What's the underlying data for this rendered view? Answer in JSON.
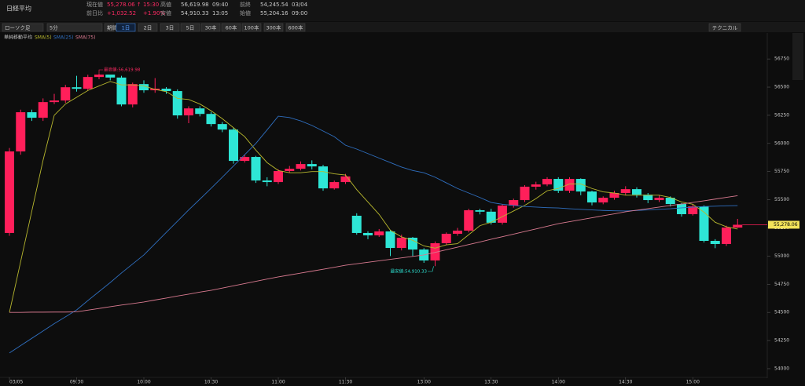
{
  "header": {
    "title": "日経平均",
    "items": [
      {
        "label": "現在値",
        "value": "55,278.06 ↑",
        "extra": "15:30"
      },
      {
        "label": "前日比",
        "value": "+1,032.52",
        "extra": "+1.90%"
      },
      {
        "label": "高値",
        "value": "56,619.98",
        "extra": "09:40"
      },
      {
        "label": "安値",
        "value": "54,910.33",
        "extra": "13:05"
      },
      {
        "label": "前終",
        "value": "54,245.54",
        "extra": "03/04"
      },
      {
        "label": "始値",
        "value": "55,204.16",
        "extra": "09:00"
      }
    ]
  },
  "toolbar": {
    "dropdowns": [
      "ローソク足",
      "5分",
      "期間指定"
    ],
    "buttons": [
      "1日",
      "2日",
      "3日",
      "5日",
      "30本",
      "60本",
      "100本",
      "300本",
      "600本"
    ],
    "right_button": "テクニカル"
  },
  "chart_data": {
    "type": "candlestick",
    "indicator_title": "単純移動平均",
    "up_color": "#ff1f5a",
    "down_color": "#2ee6d6",
    "categories": [
      "03/05",
      null,
      null,
      null,
      null,
      null,
      "09:30",
      null,
      null,
      null,
      null,
      null,
      "10:00",
      null,
      null,
      null,
      null,
      null,
      "10:30",
      null,
      null,
      null,
      null,
      null,
      "11:00",
      null,
      null,
      null,
      null,
      null,
      "11:30",
      null,
      null,
      null,
      null,
      null,
      null,
      "13:00",
      null,
      null,
      null,
      null,
      null,
      "13:30",
      null,
      null,
      null,
      null,
      null,
      "14:00",
      null,
      null,
      null,
      null,
      null,
      "14:30",
      null,
      null,
      null,
      null,
      null,
      "15:00",
      null,
      null,
      null,
      null
    ],
    "open": [
      55205,
      55929,
      56277,
      56228,
      56367,
      56381,
      56499,
      56485,
      56590,
      56611,
      56585,
      56346,
      56527,
      56472,
      56486,
      56465,
      56249,
      56311,
      56262,
      56172,
      56123,
      55845,
      55880,
      55671,
      55657,
      55755,
      55775,
      55817,
      55796,
      55601,
      55657,
      55358,
      55205,
      55184,
      55219,
      55072,
      55163,
      55058,
      54961,
      55114,
      55198,
      55226,
      55407,
      55394,
      55296,
      55448,
      55497,
      55616,
      55636,
      55685,
      55580,
      55685,
      55573,
      55476,
      55518,
      55560,
      55594,
      55545,
      55497,
      55518,
      55462,
      55372,
      55441,
      55135,
      55107,
      55253
    ],
    "high": [
      55960,
      56300,
      56300,
      56400,
      56440,
      56520,
      56600,
      56610,
      56619.98,
      56600,
      56600,
      56540,
      56560,
      56580,
      56500,
      56480,
      56330,
      56330,
      56280,
      56190,
      56140,
      55900,
      55890,
      55700,
      55770,
      55800,
      55840,
      55850,
      55810,
      55670,
      55730,
      55380,
      55220,
      55240,
      55230,
      55190,
      55170,
      55070,
      55130,
      55210,
      55250,
      55420,
      55420,
      55420,
      55460,
      55510,
      55630,
      55660,
      55700,
      55700,
      55700,
      55690,
      55580,
      55530,
      55580,
      55620,
      55610,
      55560,
      55540,
      55530,
      55470,
      55460,
      55450,
      55150,
      55270,
      55330
    ],
    "low": [
      55180,
      55900,
      56200,
      56200,
      56350,
      56360,
      56460,
      56470,
      56570,
      56560,
      56330,
      56320,
      56450,
      56450,
      56440,
      56220,
      56180,
      56240,
      56150,
      56100,
      55820,
      55830,
      55650,
      55620,
      55640,
      55740,
      55760,
      55770,
      55580,
      55590,
      55640,
      55190,
      55150,
      55170,
      55000,
      55050,
      55000,
      54940,
      54910.33,
      55100,
      55180,
      55210,
      55370,
      55280,
      55280,
      55430,
      55480,
      55590,
      55620,
      55560,
      55560,
      55540,
      55450,
      55460,
      55500,
      55540,
      55520,
      55470,
      55480,
      55440,
      55350,
      55360,
      55120,
      55070,
      55090,
      55250
    ],
    "close": [
      55929,
      56277,
      56228,
      56367,
      56381,
      56499,
      56485,
      56590,
      56611,
      56585,
      56346,
      56527,
      56472,
      56486,
      56465,
      56249,
      56311,
      56262,
      56172,
      56123,
      55845,
      55880,
      55671,
      55657,
      55755,
      55775,
      55817,
      55796,
      55601,
      55657,
      55707,
      55205,
      55184,
      55219,
      55072,
      55163,
      55058,
      54961,
      55114,
      55198,
      55226,
      55407,
      55394,
      55296,
      55448,
      55497,
      55616,
      55636,
      55685,
      55580,
      55685,
      55573,
      55476,
      55518,
      55560,
      55594,
      55545,
      55497,
      55518,
      55462,
      55372,
      55441,
      55135,
      55107,
      55253,
      55278.06
    ],
    "series": [
      {
        "name": "SMA(5)",
        "color": "#b8b82e",
        "values": [
          54500,
          54950,
          55400,
          55850,
          56250,
          56350,
          56410,
          56470,
          56510,
          56550,
          56520,
          56520,
          56510,
          56480,
          56460,
          56400,
          56390,
          56350,
          56290,
          56220,
          56140,
          56060,
          55940,
          55830,
          55760,
          55740,
          55740,
          55750,
          55750,
          55730,
          55720,
          55590,
          55480,
          55370,
          55230,
          55170,
          55140,
          55090,
          55070,
          55100,
          55110,
          55190,
          55270,
          55300,
          55350,
          55400,
          55450,
          55510,
          55580,
          55600,
          55640,
          55640,
          55600,
          55570,
          55560,
          55540,
          55540,
          55540,
          55540,
          55520,
          55480,
          55460,
          55390,
          55300,
          55260,
          55240
        ]
      },
      {
        "name": "SMA(25)",
        "color": "#2f6fc0",
        "values": [
          54140,
          54205,
          54270,
          54335,
          54400,
          54460,
          54522,
          54605,
          54685,
          54765,
          54850,
          54930,
          55010,
          55110,
          55210,
          55310,
          55410,
          55505,
          55601,
          55700,
          55800,
          55900,
          56000,
          56120,
          56242,
          56230,
          56200,
          56160,
          56110,
          56060,
          55984,
          55950,
          55910,
          55870,
          55830,
          55790,
          55760,
          55740,
          55700,
          55650,
          55600,
          55560,
          55520,
          55476,
          55460,
          55450,
          55440,
          55435,
          55430,
          55427,
          55420,
          55415,
          55410,
          55405,
          55402,
          55400,
          55405,
          55410,
          55415,
          55420,
          55428,
          55434,
          55440,
          55443,
          55446,
          55448
        ]
      },
      {
        "name": "SMA(75)",
        "color": "#d97a90",
        "values": [
          54500,
          54500,
          54502,
          54502,
          54503,
          54503,
          54505,
          54520,
          54535,
          54550,
          54565,
          54578,
          54592,
          54610,
          54627,
          54645,
          54662,
          54680,
          54696,
          54716,
          54736,
          54756,
          54776,
          54796,
          54815,
          54832,
          54849,
          54866,
          54883,
          54900,
          54919,
          54932,
          54945,
          54958,
          54971,
          54984,
          54997,
          55010,
          55033,
          55056,
          55079,
          55102,
          55125,
          55149,
          55172,
          55195,
          55218,
          55241,
          55264,
          55288,
          55305,
          55323,
          55340,
          55358,
          55375,
          55393,
          55407,
          55421,
          55435,
          55449,
          55462,
          55476,
          55491,
          55506,
          55521,
          55536
        ]
      }
    ],
    "annotations": [
      "最高値:56,619.98",
      "最安値:54,910.33"
    ],
    "price_tag": "55,278.06",
    "ylim": [
      53930,
      56960
    ],
    "yticks": [
      54000,
      54250,
      54500,
      54750,
      55000,
      55250,
      55500,
      55750,
      56000,
      56250,
      56500,
      56750
    ]
  }
}
